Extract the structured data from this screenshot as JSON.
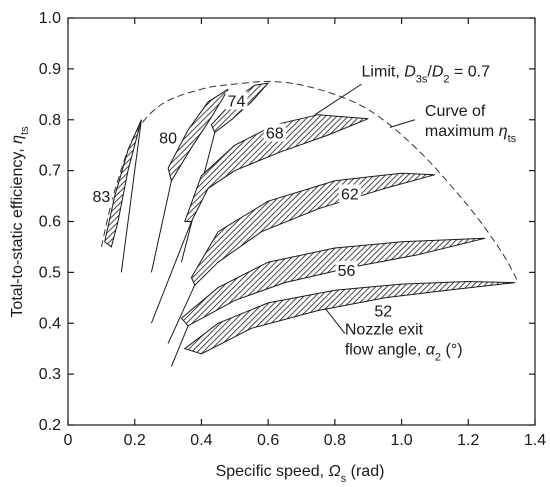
{
  "chart_data": {
    "type": "area",
    "xlabel": "Specific speed, Ω_s (rad)",
    "ylabel": "Total-to-static efficiency, η_ts",
    "xlim": [
      0,
      1.4
    ],
    "ylim": [
      0.2,
      1.0
    ],
    "x_ticks": [
      "0",
      "0.2",
      "0.4",
      "0.6",
      "0.8",
      "1.0",
      "1.2",
      "1.4"
    ],
    "y_ticks": [
      "0.2",
      "0.3",
      "0.4",
      "0.5",
      "0.6",
      "0.7",
      "0.8",
      "0.9",
      "1.0"
    ],
    "grid": false,
    "series": [
      {
        "name": "83",
        "label_at": [
          0.1,
          0.65
        ],
        "upper": [
          [
            0.11,
            0.56
          ],
          [
            0.14,
            0.65
          ],
          [
            0.18,
            0.74
          ],
          [
            0.22,
            0.8
          ]
        ],
        "lower": [
          [
            0.22,
            0.8
          ],
          [
            0.18,
            0.7
          ],
          [
            0.15,
            0.6
          ],
          [
            0.13,
            0.55
          ]
        ]
      },
      {
        "name": "80",
        "label_at": [
          0.3,
          0.765
        ],
        "upper": [
          [
            0.3,
            0.705
          ],
          [
            0.36,
            0.78
          ],
          [
            0.42,
            0.835
          ],
          [
            0.48,
            0.86
          ]
        ],
        "lower": [
          [
            0.48,
            0.86
          ],
          [
            0.43,
            0.805
          ],
          [
            0.37,
            0.745
          ],
          [
            0.31,
            0.68
          ]
        ]
      },
      {
        "name": "74",
        "label_at": [
          0.505,
          0.838
        ],
        "upper": [
          [
            0.43,
            0.79
          ],
          [
            0.5,
            0.84
          ],
          [
            0.56,
            0.868
          ],
          [
            0.6,
            0.872
          ]
        ],
        "lower": [
          [
            0.6,
            0.872
          ],
          [
            0.55,
            0.835
          ],
          [
            0.49,
            0.8
          ],
          [
            0.44,
            0.775
          ]
        ]
      },
      {
        "name": "68",
        "label_at": [
          0.62,
          0.775
        ],
        "upper": [
          [
            0.35,
            0.6
          ],
          [
            0.4,
            0.69
          ],
          [
            0.5,
            0.75
          ],
          [
            0.62,
            0.79
          ],
          [
            0.75,
            0.81
          ],
          [
            0.9,
            0.802
          ]
        ],
        "lower": [
          [
            0.9,
            0.802
          ],
          [
            0.78,
            0.77
          ],
          [
            0.63,
            0.735
          ],
          [
            0.5,
            0.7
          ],
          [
            0.42,
            0.665
          ],
          [
            0.37,
            0.6
          ]
        ]
      },
      {
        "name": "62",
        "label_at": [
          0.845,
          0.655
        ],
        "upper": [
          [
            0.37,
            0.49
          ],
          [
            0.45,
            0.58
          ],
          [
            0.6,
            0.64
          ],
          [
            0.8,
            0.68
          ],
          [
            1.0,
            0.695
          ],
          [
            1.1,
            0.692
          ]
        ],
        "lower": [
          [
            1.1,
            0.692
          ],
          [
            0.95,
            0.665
          ],
          [
            0.75,
            0.625
          ],
          [
            0.58,
            0.58
          ],
          [
            0.45,
            0.52
          ],
          [
            0.38,
            0.475
          ]
        ]
      },
      {
        "name": "56",
        "label_at": [
          0.835,
          0.505
        ],
        "upper": [
          [
            0.34,
            0.41
          ],
          [
            0.45,
            0.47
          ],
          [
            0.6,
            0.52
          ],
          [
            0.8,
            0.548
          ],
          [
            1.0,
            0.56
          ],
          [
            1.25,
            0.567
          ]
        ],
        "lower": [
          [
            1.25,
            0.567
          ],
          [
            1.05,
            0.535
          ],
          [
            0.85,
            0.51
          ],
          [
            0.65,
            0.48
          ],
          [
            0.5,
            0.445
          ],
          [
            0.36,
            0.395
          ]
        ]
      },
      {
        "name": "52",
        "label_at": [
          0.945,
          0.425
        ],
        "upper": [
          [
            0.35,
            0.35
          ],
          [
            0.45,
            0.4
          ],
          [
            0.6,
            0.44
          ],
          [
            0.8,
            0.465
          ],
          [
            1.0,
            0.477
          ],
          [
            1.2,
            0.482
          ],
          [
            1.34,
            0.48
          ]
        ],
        "lower": [
          [
            1.34,
            0.48
          ],
          [
            1.15,
            0.466
          ],
          [
            0.95,
            0.45
          ],
          [
            0.75,
            0.425
          ],
          [
            0.55,
            0.39
          ],
          [
            0.4,
            0.34
          ]
        ]
      }
    ],
    "limit_curve": [
      [
        0.1,
        0.55
      ],
      [
        0.14,
        0.66
      ],
      [
        0.2,
        0.77
      ],
      [
        0.28,
        0.83
      ],
      [
        0.4,
        0.86
      ],
      [
        0.5,
        0.87
      ],
      [
        0.62,
        0.875
      ],
      [
        0.75,
        0.86
      ],
      [
        0.9,
        0.82
      ],
      [
        1.05,
        0.74
      ],
      [
        1.2,
        0.63
      ],
      [
        1.3,
        0.54
      ],
      [
        1.35,
        0.48
      ]
    ],
    "extension_lines": [
      {
        "band": "83",
        "start": [
          0.22,
          0.8
        ],
        "end": [
          0.16,
          0.5
        ]
      },
      {
        "band": "80",
        "start": [
          0.31,
          0.68
        ],
        "end": [
          0.25,
          0.5
        ]
      },
      {
        "band": "74",
        "start": [
          0.44,
          0.775
        ],
        "end": [
          0.34,
          0.52
        ]
      },
      {
        "band": "68",
        "start": [
          0.37,
          0.6
        ],
        "end": [
          0.25,
          0.4
        ]
      },
      {
        "band": "62",
        "start": [
          0.38,
          0.475
        ],
        "end": [
          0.3,
          0.36
        ]
      },
      {
        "band": "56",
        "start": [
          0.36,
          0.395
        ],
        "end": [
          0.31,
          0.315
        ]
      }
    ],
    "annotations": [
      {
        "id": "limit",
        "text": "Limit, D3s/D2 = 0.7",
        "parts": [
          {
            "t": "Limit, ",
            "kind": "normal"
          },
          {
            "t": "D",
            "kind": "italic"
          },
          {
            "t": "3s",
            "kind": "sub"
          },
          {
            "t": "/",
            "kind": "normal"
          },
          {
            "t": "D",
            "kind": "italic"
          },
          {
            "t": "2",
            "kind": "sub"
          },
          {
            "t": " = 0.7",
            "kind": "normal"
          }
        ],
        "text_at": [
          0.88,
          0.885
        ],
        "leader": [
          [
            0.88,
            0.87
          ],
          [
            0.74,
            0.81
          ]
        ]
      },
      {
        "id": "maximum",
        "lines": [
          "Curve of",
          "maximum η_ts"
        ],
        "text_at": [
          1.07,
          0.8
        ],
        "leader": [
          [
            1.04,
            0.8
          ],
          [
            0.965,
            0.785
          ]
        ]
      },
      {
        "id": "nozzle",
        "lines": [
          "Nozzle exit",
          "flow angle, α2 (°)"
        ],
        "text_at": [
          0.83,
          0.378
        ],
        "leader": [
          [
            0.83,
            0.38
          ],
          [
            0.77,
            0.43
          ]
        ]
      }
    ]
  }
}
